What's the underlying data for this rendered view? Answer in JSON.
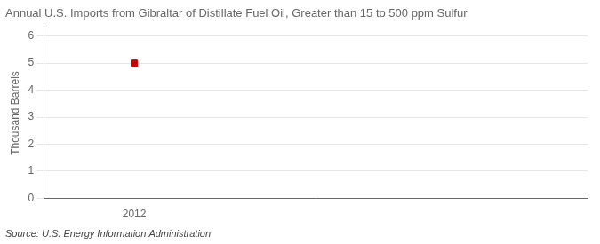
{
  "chart_data": {
    "type": "scatter",
    "title": "Annual U.S. Imports from Gibraltar of Distillate Fuel Oil, Greater than 15 to 500 ppm Sulfur",
    "ylabel": "Thousand Barrels",
    "source": "Source: U.S. Energy Information Administration",
    "x": [
      2012
    ],
    "values": [
      5
    ],
    "color": "#cc0000",
    "marker": "square",
    "xlim": [
      2011.7,
      2013.5
    ],
    "xticks": [
      2012
    ],
    "ylim": [
      0,
      6.3
    ],
    "yticks": [
      0,
      1,
      2,
      3,
      4,
      5,
      6
    ],
    "grid": "y"
  }
}
